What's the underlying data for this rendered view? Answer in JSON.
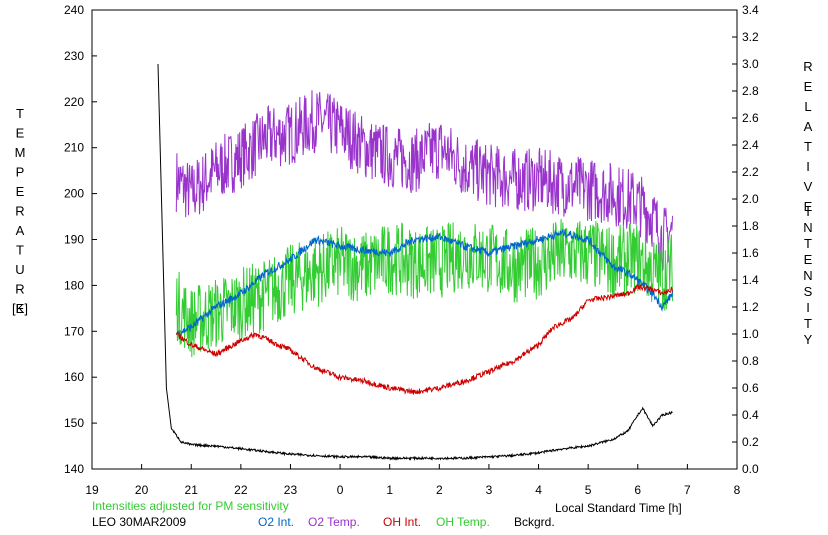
{
  "chart_data": {
    "type": "line",
    "left_axis": {
      "label_letters": [
        "T",
        "E",
        "M",
        "P",
        "E",
        "R",
        "A",
        "T",
        "U",
        "R",
        "E"
      ],
      "unit": "[K]",
      "range": [
        140,
        240
      ],
      "ticks": [
        "140",
        "150",
        "160",
        "170",
        "180",
        "190",
        "200",
        "210",
        "220",
        "230",
        "240"
      ]
    },
    "right_axis": {
      "label_top_letters": [
        "R",
        "E",
        "L",
        "A",
        "T",
        "I",
        "V",
        "E"
      ],
      "label_bottom_letters": [
        "I",
        "N",
        "T",
        "E",
        "N",
        "S",
        "I",
        "T",
        "Y"
      ],
      "range": [
        0.0,
        3.4
      ],
      "ticks": [
        "0.0",
        "0.2",
        "0.4",
        "0.6",
        "0.8",
        "1.0",
        "1.2",
        "1.4",
        "1.6",
        "1.8",
        "2.0",
        "2.2",
        "2.4",
        "2.6",
        "2.8",
        "3.0",
        "3.2",
        "3.4"
      ]
    },
    "x_axis": {
      "label": "Local Standard Time [h]",
      "range": [
        19,
        32
      ],
      "ticks": [
        "19",
        "20",
        "21",
        "22",
        "23",
        "0",
        "1",
        "2",
        "3",
        "4",
        "5",
        "6",
        "7",
        "8"
      ]
    },
    "note": "Intensities adjusted for PM sensitivity",
    "station": "LEO 30MAR2009",
    "series": [
      {
        "name": "O2 Int.",
        "color": "#0066cc",
        "axis": "right",
        "x": [
          20.7,
          21.0,
          21.5,
          22.0,
          22.5,
          23.0,
          23.5,
          24.0,
          24.5,
          25.0,
          25.5,
          26.0,
          26.5,
          27.0,
          27.5,
          28.0,
          28.5,
          29.0,
          29.5,
          29.8,
          30.0,
          30.3,
          30.5,
          30.7
        ],
        "y": [
          1.0,
          1.05,
          1.2,
          1.3,
          1.45,
          1.55,
          1.7,
          1.65,
          1.62,
          1.6,
          1.7,
          1.72,
          1.65,
          1.6,
          1.65,
          1.7,
          1.75,
          1.7,
          1.5,
          1.45,
          1.4,
          1.3,
          1.2,
          1.3
        ]
      },
      {
        "name": "O2 Temp.",
        "color": "#9933cc",
        "axis": "left",
        "x": [
          20.7,
          21.0,
          21.5,
          22.0,
          22.5,
          23.0,
          23.5,
          24.0,
          24.5,
          25.0,
          25.5,
          26.0,
          26.5,
          27.0,
          27.5,
          28.0,
          28.5,
          29.0,
          29.5,
          30.0,
          30.3,
          30.5,
          30.7
        ],
        "y": [
          203,
          200,
          205,
          208,
          212,
          213,
          216,
          214,
          210,
          208,
          207,
          210,
          206,
          204,
          203,
          203,
          202,
          201,
          200,
          198,
          195,
          190,
          192
        ]
      },
      {
        "name": "OH Int.",
        "color": "#cc0000",
        "axis": "right",
        "x": [
          20.7,
          21.0,
          21.5,
          22.0,
          22.3,
          22.7,
          23.0,
          23.5,
          24.0,
          24.5,
          25.0,
          25.5,
          26.0,
          26.5,
          27.0,
          27.5,
          28.0,
          28.3,
          28.7,
          29.0,
          29.5,
          29.8,
          30.0,
          30.3,
          30.5,
          30.7
        ],
        "y": [
          1.0,
          0.92,
          0.85,
          0.95,
          1.0,
          0.93,
          0.88,
          0.75,
          0.68,
          0.65,
          0.6,
          0.57,
          0.6,
          0.65,
          0.72,
          0.8,
          0.92,
          1.05,
          1.12,
          1.25,
          1.28,
          1.3,
          1.35,
          1.33,
          1.3,
          1.33
        ]
      },
      {
        "name": "OH Temp.",
        "color": "#33cc33",
        "axis": "left",
        "x": [
          20.7,
          21.0,
          21.5,
          22.0,
          22.5,
          23.0,
          23.5,
          24.0,
          24.5,
          25.0,
          25.5,
          26.0,
          26.5,
          27.0,
          27.5,
          28.0,
          28.5,
          29.0,
          29.5,
          30.0,
          30.3,
          30.5,
          30.7
        ],
        "y": [
          176,
          172,
          174,
          176,
          178,
          181,
          183,
          185,
          184,
          186,
          185,
          185,
          187,
          186,
          184,
          185,
          187,
          187,
          185,
          186,
          183,
          182,
          184
        ]
      },
      {
        "name": "Bckgrd.",
        "color": "#000000",
        "axis": "right",
        "x": [
          20.33,
          20.4,
          20.5,
          20.6,
          20.8,
          21.0,
          21.5,
          22.0,
          22.5,
          23.0,
          23.5,
          24.0,
          24.5,
          25.0,
          25.5,
          26.0,
          26.5,
          27.0,
          27.5,
          28.0,
          28.5,
          29.0,
          29.5,
          29.8,
          30.0,
          30.1,
          30.3,
          30.5,
          30.7
        ],
        "y": [
          3.0,
          2.0,
          0.6,
          0.3,
          0.2,
          0.18,
          0.17,
          0.15,
          0.13,
          0.11,
          0.1,
          0.09,
          0.09,
          0.08,
          0.08,
          0.08,
          0.08,
          0.09,
          0.1,
          0.12,
          0.15,
          0.17,
          0.22,
          0.28,
          0.4,
          0.45,
          0.32,
          0.4,
          0.42
        ]
      }
    ]
  }
}
